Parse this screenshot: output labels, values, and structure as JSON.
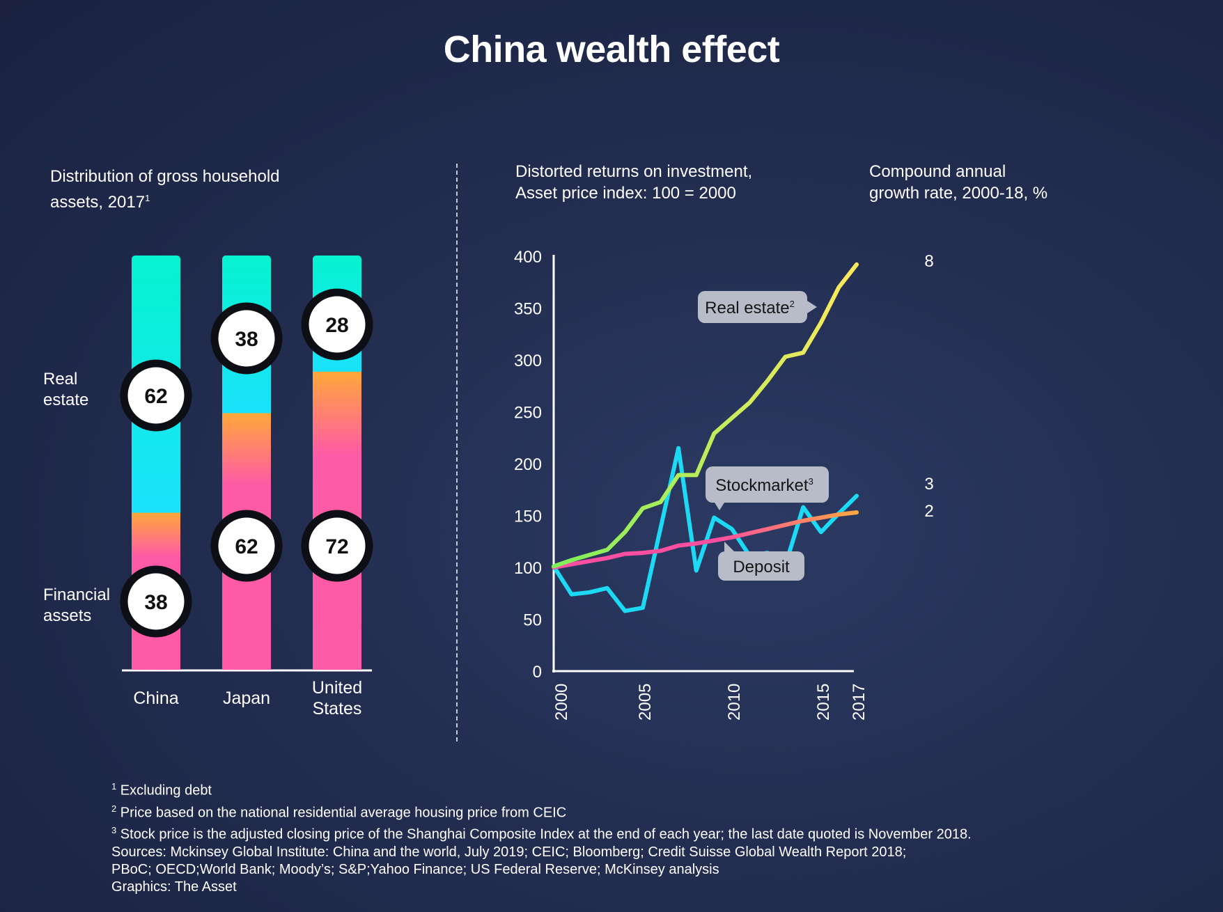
{
  "title": "China wealth effect",
  "left_panel": {
    "heading_line1": "Distribution of gross household",
    "heading_line2": "assets, 2017",
    "heading_sup": "1",
    "row_labels": {
      "real_estate_line1": "Real",
      "real_estate_line2": "estate",
      "financial_line1": "Financial",
      "financial_line2": "assets"
    }
  },
  "middle_panel": {
    "heading_line1": "Distorted returns on investment,",
    "heading_line2": "Asset price index: 100 = 2000"
  },
  "right_panel": {
    "heading_line1": "Compound annual",
    "heading_line2": "growth rate, 2000-18, %"
  },
  "colors": {
    "real_estate_bar_top": "#06f2d0",
    "real_estate_bar_bottom": "#1ae2fb",
    "financial_bar_top": "#ffa83a",
    "financial_bar_bottom": "#ff5aa6",
    "real_estate_line_start": "#7df05a",
    "real_estate_line_end": "#fde95c",
    "stockmarket_line": "#1cd9f4",
    "deposit_line_start": "#ff4fa0",
    "deposit_line_end": "#ffa640",
    "background": "#222d50",
    "callout": "#b8bcc8"
  },
  "chart_data": [
    {
      "type": "bar",
      "stacked": true,
      "title": "",
      "categories": [
        "China",
        "Japan",
        "United States"
      ],
      "category_lines": [
        [
          "China"
        ],
        [
          "Japan"
        ],
        [
          "United",
          "States"
        ]
      ],
      "series": [
        {
          "name": "Financial assets",
          "values": [
            38,
            62,
            72
          ]
        },
        {
          "name": "Real estate",
          "values": [
            62,
            38,
            28
          ]
        }
      ],
      "ylim": [
        0,
        100
      ],
      "grid": false
    },
    {
      "type": "line",
      "title": "",
      "x": [
        2000,
        2001,
        2002,
        2003,
        2004,
        2005,
        2006,
        2007,
        2008,
        2009,
        2010,
        2011,
        2012,
        2013,
        2014,
        2015,
        2016,
        2017
      ],
      "x_ticks": [
        2000,
        2005,
        2010,
        2015,
        2017
      ],
      "y_ticks": [
        0,
        50,
        100,
        150,
        200,
        250,
        300,
        350,
        400
      ],
      "ylim": [
        0,
        400
      ],
      "xlim": [
        2000,
        2017
      ],
      "grid": false,
      "series": [
        {
          "name": "Real estate",
          "sup": "2",
          "cagr": "8",
          "values": [
            101,
            107,
            112,
            117,
            134,
            157,
            163,
            189,
            189,
            229,
            244,
            259,
            280,
            303,
            307,
            336,
            370,
            392
          ]
        },
        {
          "name": "Stockmarket",
          "sup": "3",
          "cagr": "3",
          "values": [
            101,
            74,
            76,
            80,
            58,
            61,
            138,
            215,
            97,
            148,
            137,
            111,
            114,
            102,
            158,
            134,
            152,
            169
          ]
        },
        {
          "name": "Deposit",
          "sup": "",
          "cagr": "2",
          "values": [
            100,
            103,
            106,
            109,
            113,
            114,
            116,
            121,
            123,
            126,
            129,
            133,
            137,
            141,
            145,
            148,
            151,
            153
          ]
        }
      ]
    }
  ],
  "footnotes": [
    {
      "sup": "1",
      "text": " Excluding debt"
    },
    {
      "sup": "2",
      "text": " Price based on the national residential average housing price from CEIC"
    },
    {
      "sup": "3",
      "text": " Stock price is the adjusted closing price of the Shanghai Composite Index at the end of each year; the last date quoted is November 2018."
    },
    {
      "sup": "",
      "text": "Sources: Mckinsey Global Institute: China and the world, July 2019; CEIC; Bloomberg; Credit Suisse Global Wealth Report 2018;"
    },
    {
      "sup": "",
      "text": "PBoC; OECD;World Bank; Moody’s; S&P;Yahoo Finance; US Federal Reserve; McKinsey analysis"
    },
    {
      "sup": "",
      "text": "Graphics: The Asset"
    }
  ]
}
